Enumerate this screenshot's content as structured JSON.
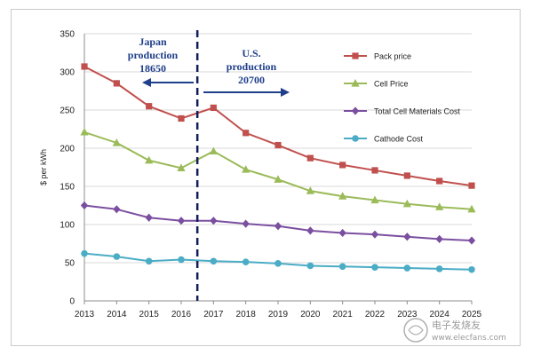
{
  "chart_data": {
    "type": "line",
    "title": "",
    "xlabel": "",
    "ylabel": "$ per kWh",
    "ylim": [
      0,
      350
    ],
    "yticks": [
      0,
      50,
      100,
      150,
      200,
      250,
      300,
      350
    ],
    "categories": [
      "2013",
      "2014",
      "2015",
      "2016",
      "2017",
      "2018",
      "2019",
      "2020",
      "2021",
      "2022",
      "2023",
      "2024",
      "2025"
    ],
    "series": [
      {
        "name": "Pack price",
        "color": "#c0504d",
        "marker": "square",
        "values": [
          307,
          285,
          255,
          239,
          253,
          220,
          204,
          187,
          178,
          171,
          164,
          157,
          151
        ]
      },
      {
        "name": "Cell Price",
        "color": "#9bbb59",
        "marker": "triangle",
        "values": [
          221,
          207,
          184,
          174,
          196,
          172,
          159,
          144,
          137,
          132,
          127,
          123,
          120
        ]
      },
      {
        "name": "Total Cell Materials Cost",
        "color": "#7b4fa0",
        "marker": "diamond",
        "values": [
          125,
          120,
          109,
          105,
          105,
          101,
          98,
          92,
          89,
          87,
          84,
          81,
          79
        ]
      },
      {
        "name": "Cathode Cost",
        "color": "#4bacc6",
        "marker": "circle",
        "values": [
          62,
          58,
          52,
          54,
          52,
          51,
          49,
          46,
          45,
          44,
          43,
          42,
          41
        ]
      }
    ],
    "divider_between": [
      "2016",
      "2017"
    ],
    "annotations": {
      "left_lines": [
        "Japan",
        "production",
        "18650"
      ],
      "right_lines": [
        "U.S.",
        "production",
        "20700"
      ]
    }
  },
  "watermark": {
    "line1": "电子发烧友",
    "line2": "www.elecfans.com"
  }
}
